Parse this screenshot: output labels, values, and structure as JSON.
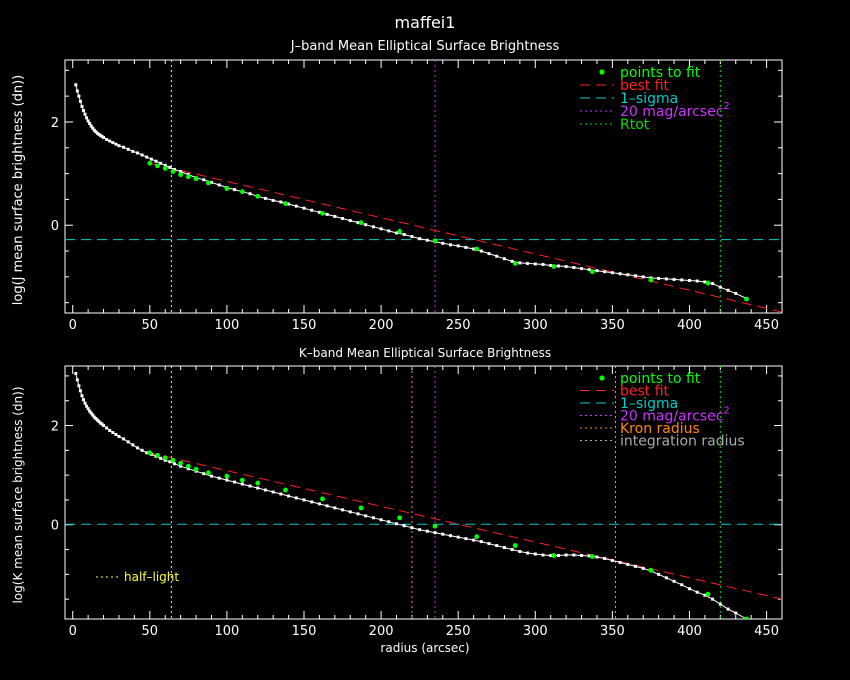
{
  "figure_title": "maffei1",
  "colors": {
    "points": "#00ff00",
    "profile": "#ffffff",
    "best_fit": "#ff2020",
    "one_sigma": "#00cccc",
    "mag20": "#cc33ff",
    "rtot": "#00dd00",
    "kron": "#ff8800",
    "integration": "#aaaaaa",
    "half_light": "#ffff33",
    "axes": "#ffffff"
  },
  "chart_data": [
    {
      "type": "line",
      "title": "J–band Mean Elliptical Surface Brightness",
      "xlabel": "",
      "ylabel": "log(J mean surface brightness (dn))",
      "xlim": [
        -5,
        460
      ],
      "ylim": [
        -1.7,
        3.2
      ],
      "x_ticks": [
        0,
        50,
        100,
        150,
        200,
        250,
        300,
        350,
        400,
        450
      ],
      "y_ticks": [
        0,
        2
      ],
      "legend_position": "top-right",
      "legend": [
        {
          "label": "points to fit",
          "style": "dot",
          "color_key": "points"
        },
        {
          "label": "best fit",
          "style": "dash",
          "color_key": "best_fit"
        },
        {
          "label": "1–sigma",
          "style": "dash",
          "color_key": "one_sigma"
        },
        {
          "label": "20 mag/arcsec",
          "sup": "2",
          "style": "dot-line",
          "color_key": "mag20"
        },
        {
          "label": "Rtot",
          "style": "dot-line",
          "color_key": "rtot"
        }
      ],
      "profile": {
        "x": [
          2,
          3,
          4,
          5,
          6,
          7,
          8,
          9,
          10,
          11,
          12,
          13,
          14,
          15,
          16,
          17,
          18,
          19,
          20,
          22,
          24,
          26,
          28,
          30,
          33,
          36,
          39,
          42,
          45,
          48,
          51,
          54,
          57,
          60,
          63,
          66,
          70,
          75,
          80,
          85,
          90,
          95,
          100,
          105,
          110,
          115,
          120,
          125,
          130,
          135,
          140,
          145,
          150,
          155,
          160,
          165,
          170,
          175,
          180,
          185,
          190,
          195,
          200,
          205,
          210,
          215,
          220,
          225,
          230,
          235,
          240,
          245,
          250,
          255,
          260,
          265,
          270,
          275,
          280,
          285,
          290,
          295,
          300,
          305,
          310,
          315,
          320,
          325,
          330,
          335,
          340,
          345,
          350,
          355,
          360,
          365,
          370,
          375,
          380,
          385,
          390,
          395,
          400,
          405,
          410,
          415,
          420,
          425,
          430,
          437
        ],
        "y": [
          2.72,
          2.6,
          2.5,
          2.4,
          2.3,
          2.22,
          2.15,
          2.08,
          2.02,
          1.97,
          1.92,
          1.88,
          1.84,
          1.81,
          1.78,
          1.76,
          1.74,
          1.72,
          1.7,
          1.66,
          1.63,
          1.6,
          1.57,
          1.54,
          1.51,
          1.47,
          1.43,
          1.4,
          1.36,
          1.32,
          1.28,
          1.24,
          1.2,
          1.16,
          1.12,
          1.08,
          1.04,
          0.98,
          0.92,
          0.88,
          0.83,
          0.78,
          0.73,
          0.69,
          0.65,
          0.61,
          0.56,
          0.52,
          0.48,
          0.45,
          0.41,
          0.37,
          0.33,
          0.29,
          0.25,
          0.21,
          0.17,
          0.13,
          0.09,
          0.05,
          0.01,
          -0.03,
          -0.07,
          -0.11,
          -0.15,
          -0.18,
          -0.22,
          -0.26,
          -0.29,
          -0.32,
          -0.35,
          -0.38,
          -0.4,
          -0.43,
          -0.46,
          -0.5,
          -0.55,
          -0.6,
          -0.65,
          -0.7,
          -0.73,
          -0.74,
          -0.75,
          -0.76,
          -0.78,
          -0.79,
          -0.8,
          -0.82,
          -0.84,
          -0.86,
          -0.88,
          -0.9,
          -0.92,
          -0.94,
          -0.96,
          -0.98,
          -1.0,
          -1.02,
          -1.03,
          -1.04,
          -1.05,
          -1.06,
          -1.07,
          -1.08,
          -1.1,
          -1.13,
          -1.2,
          -1.26,
          -1.32,
          -1.42
        ]
      },
      "fit_points": {
        "x": [
          50,
          55,
          60,
          65,
          70,
          75,
          80,
          88,
          100,
          110,
          120,
          138,
          162,
          187,
          212,
          235,
          262,
          287,
          312,
          337,
          375,
          412,
          437
        ],
        "y": [
          1.2,
          1.15,
          1.1,
          1.04,
          0.98,
          0.94,
          0.9,
          0.82,
          0.71,
          0.65,
          0.56,
          0.42,
          0.23,
          0.05,
          -0.12,
          -0.3,
          -0.46,
          -0.74,
          -0.8,
          -0.9,
          -1.06,
          -1.12,
          -1.43
        ]
      },
      "best_fit": {
        "x": [
          50,
          460
        ],
        "y": [
          1.2,
          -1.68
        ]
      },
      "one_sigma": -0.28,
      "vlines": [
        {
          "x": 64,
          "color_key": "half_light"
        },
        {
          "x": 235,
          "color_key": "mag20"
        },
        {
          "x": 420,
          "color_key": "rtot"
        }
      ]
    },
    {
      "type": "line",
      "title": "K–band Mean Elliptical Surface Brightness",
      "xlabel": "radius (arcsec)",
      "ylabel": "log(K mean surface brightness (dn))",
      "xlim": [
        -5,
        460
      ],
      "ylim": [
        -1.9,
        3.2
      ],
      "x_ticks": [
        0,
        50,
        100,
        150,
        200,
        250,
        300,
        350,
        400,
        450
      ],
      "y_ticks": [
        0,
        2
      ],
      "legend_position": "top-right",
      "legend": [
        {
          "label": "points to fit",
          "style": "dot",
          "color_key": "points"
        },
        {
          "label": "best fit",
          "style": "dash",
          "color_key": "best_fit"
        },
        {
          "label": "1–sigma",
          "style": "dash",
          "color_key": "one_sigma"
        },
        {
          "label": "20 mag/arcsec",
          "sup": "2",
          "style": "dot-line",
          "color_key": "mag20"
        },
        {
          "label": "Kron radius",
          "style": "dot-line",
          "color_key": "kron"
        },
        {
          "label": "integration radius",
          "style": "dot-line",
          "color_key": "integration"
        }
      ],
      "annotation": {
        "label": "half–light",
        "style": "dot-line",
        "color_key": "half_light"
      },
      "profile": {
        "x": [
          2,
          3,
          4,
          5,
          6,
          7,
          8,
          9,
          10,
          11,
          12,
          13,
          14,
          15,
          16,
          17,
          18,
          19,
          20,
          22,
          24,
          26,
          28,
          30,
          33,
          36,
          39,
          42,
          45,
          48,
          51,
          54,
          57,
          60,
          63,
          66,
          70,
          75,
          80,
          85,
          90,
          95,
          100,
          105,
          110,
          115,
          120,
          125,
          130,
          135,
          140,
          145,
          150,
          155,
          160,
          165,
          170,
          175,
          180,
          185,
          190,
          195,
          200,
          205,
          210,
          215,
          220,
          225,
          230,
          235,
          240,
          245,
          250,
          255,
          260,
          265,
          270,
          275,
          280,
          285,
          290,
          295,
          300,
          305,
          310,
          315,
          320,
          325,
          330,
          335,
          340,
          345,
          350,
          355,
          360,
          365,
          370,
          375,
          380,
          385,
          390,
          395,
          400,
          405,
          410,
          415,
          420,
          425,
          430,
          437
        ],
        "y": [
          3.05,
          2.92,
          2.8,
          2.7,
          2.6,
          2.52,
          2.45,
          2.39,
          2.34,
          2.29,
          2.25,
          2.21,
          2.17,
          2.14,
          2.11,
          2.08,
          2.05,
          2.03,
          2.0,
          1.95,
          1.9,
          1.86,
          1.82,
          1.78,
          1.73,
          1.67,
          1.61,
          1.55,
          1.5,
          1.45,
          1.42,
          1.38,
          1.34,
          1.3,
          1.27,
          1.23,
          1.18,
          1.13,
          1.08,
          1.03,
          0.98,
          0.94,
          0.9,
          0.86,
          0.82,
          0.78,
          0.74,
          0.7,
          0.66,
          0.62,
          0.58,
          0.54,
          0.5,
          0.46,
          0.42,
          0.38,
          0.34,
          0.3,
          0.26,
          0.22,
          0.18,
          0.14,
          0.1,
          0.06,
          0.02,
          -0.02,
          -0.06,
          -0.1,
          -0.13,
          -0.16,
          -0.19,
          -0.22,
          -0.25,
          -0.28,
          -0.31,
          -0.34,
          -0.38,
          -0.42,
          -0.46,
          -0.5,
          -0.54,
          -0.57,
          -0.59,
          -0.61,
          -0.62,
          -0.62,
          -0.61,
          -0.61,
          -0.62,
          -0.63,
          -0.65,
          -0.68,
          -0.72,
          -0.76,
          -0.8,
          -0.84,
          -0.88,
          -0.93,
          -1.0,
          -1.07,
          -1.14,
          -1.21,
          -1.29,
          -1.36,
          -1.42,
          -1.5,
          -1.6,
          -1.7,
          -1.78,
          -1.9
        ]
      },
      "fit_points": {
        "x": [
          50,
          55,
          60,
          65,
          70,
          75,
          80,
          88,
          100,
          110,
          120,
          138,
          162,
          187,
          212,
          235,
          262,
          287,
          312,
          337,
          375,
          412,
          437
        ],
        "y": [
          1.45,
          1.4,
          1.35,
          1.3,
          1.24,
          1.18,
          1.12,
          1.05,
          0.98,
          0.9,
          0.84,
          0.7,
          0.52,
          0.34,
          0.14,
          -0.03,
          -0.24,
          -0.42,
          -0.62,
          -0.64,
          -0.92,
          -1.4,
          -1.9
        ]
      },
      "best_fit": {
        "x": [
          50,
          460
        ],
        "y": [
          1.45,
          -1.5
        ]
      },
      "one_sigma": 0.01,
      "vlines": [
        {
          "x": 64,
          "color_key": "half_light"
        },
        {
          "x": 220,
          "color_key": "kron"
        },
        {
          "x": 235,
          "color_key": "mag20"
        },
        {
          "x": 352,
          "color_key": "integration"
        },
        {
          "x": 420,
          "color_key": "rtot"
        }
      ]
    }
  ]
}
